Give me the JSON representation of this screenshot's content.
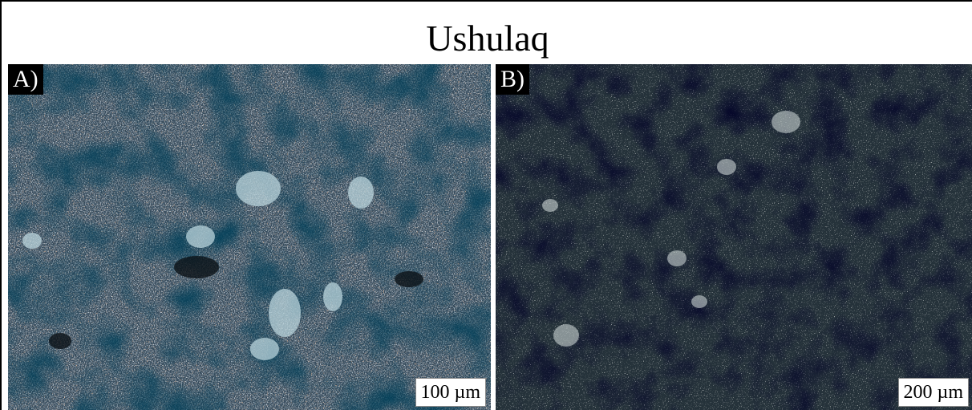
{
  "title": "Ushulaq",
  "panels": [
    {
      "label": "A)",
      "scale": "100 µm"
    },
    {
      "label": "B)",
      "scale": "200 µm"
    }
  ]
}
